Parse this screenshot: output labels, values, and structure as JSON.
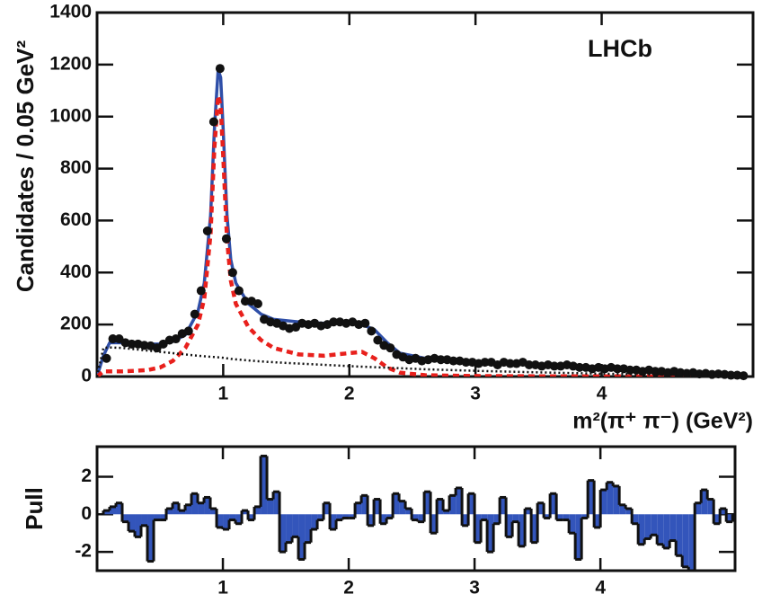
{
  "chart_data": [
    {
      "type": "scatter",
      "annotation": "LHCb",
      "xlabel": "m²(π⁺ π⁻) (GeV²)",
      "ylabel": "Candidates / 0.05 GeV²",
      "xlim": [
        0,
        5.2
      ],
      "ylim": [
        0,
        1400
      ],
      "xticks": [
        1,
        2,
        3,
        4
      ],
      "yticks": [
        0,
        200,
        400,
        600,
        800,
        1000,
        1200,
        1400
      ],
      "series": [
        {
          "style": "points",
          "color": "#111111",
          "x": [
            0.075,
            0.125,
            0.175,
            0.225,
            0.275,
            0.325,
            0.375,
            0.425,
            0.475,
            0.525,
            0.575,
            0.625,
            0.675,
            0.725,
            0.775,
            0.825,
            0.875,
            0.925,
            0.975,
            1.025,
            1.075,
            1.125,
            1.175,
            1.225,
            1.275,
            1.325,
            1.375,
            1.425,
            1.475,
            1.525,
            1.575,
            1.625,
            1.675,
            1.725,
            1.775,
            1.825,
            1.875,
            1.925,
            1.975,
            2.025,
            2.075,
            2.125,
            2.175,
            2.225,
            2.275,
            2.325,
            2.375,
            2.425,
            2.475,
            2.525,
            2.575,
            2.625,
            2.675,
            2.725,
            2.775,
            2.825,
            2.875,
            2.925,
            2.975,
            3.025,
            3.075,
            3.125,
            3.175,
            3.225,
            3.275,
            3.325,
            3.375,
            3.425,
            3.475,
            3.525,
            3.575,
            3.625,
            3.675,
            3.725,
            3.775,
            3.825,
            3.875,
            3.925,
            3.975,
            4.025,
            4.075,
            4.125,
            4.175,
            4.225,
            4.275,
            4.325,
            4.375,
            4.425,
            4.475,
            4.525,
            4.575,
            4.625,
            4.675,
            4.725,
            4.775,
            4.825,
            4.875,
            4.925,
            4.975,
            5.025,
            5.075,
            5.125
          ],
          "values": [
            70,
            145,
            145,
            130,
            125,
            125,
            120,
            118,
            110,
            125,
            140,
            145,
            165,
            175,
            240,
            330,
            560,
            980,
            1185,
            530,
            400,
            330,
            290,
            290,
            280,
            220,
            210,
            205,
            195,
            185,
            190,
            205,
            200,
            205,
            195,
            200,
            210,
            210,
            205,
            210,
            200,
            205,
            175,
            140,
            120,
            110,
            85,
            75,
            65,
            70,
            60,
            65,
            70,
            65,
            65,
            60,
            60,
            55,
            55,
            50,
            55,
            55,
            45,
            55,
            50,
            50,
            55,
            45,
            45,
            40,
            45,
            40,
            40,
            45,
            40,
            35,
            35,
            30,
            35,
            30,
            35,
            30,
            30,
            25,
            25,
            20,
            25,
            20,
            20,
            15,
            20,
            15,
            12,
            15,
            10,
            12,
            8,
            10,
            8,
            5,
            5,
            3
          ]
        },
        {
          "style": "solid",
          "color": "#2f4fa8",
          "x": [
            0.0,
            0.05,
            0.1,
            0.2,
            0.3,
            0.4,
            0.5,
            0.6,
            0.7,
            0.8,
            0.85,
            0.9,
            0.93,
            0.96,
            0.98,
            1.0,
            1.03,
            1.06,
            1.1,
            1.2,
            1.3,
            1.4,
            1.6,
            1.8,
            2.0,
            2.1,
            2.2,
            2.3,
            2.4,
            2.6,
            3.0,
            3.5,
            4.0,
            4.5,
            5.0,
            5.15
          ],
          "values": [
            0,
            80,
            130,
            130,
            128,
            125,
            125,
            135,
            160,
            250,
            360,
            620,
            950,
            1180,
            1150,
            950,
            620,
            450,
            360,
            280,
            240,
            220,
            210,
            205,
            205,
            200,
            180,
            130,
            90,
            70,
            55,
            45,
            35,
            22,
            10,
            5
          ]
        },
        {
          "style": "dashed",
          "color": "#e8201c",
          "x": [
            0.0,
            0.05,
            0.1,
            0.2,
            0.3,
            0.4,
            0.5,
            0.6,
            0.7,
            0.8,
            0.85,
            0.9,
            0.93,
            0.96,
            0.98,
            1.0,
            1.03,
            1.06,
            1.1,
            1.2,
            1.3,
            1.4,
            1.6,
            1.8,
            2.0,
            2.1,
            2.2,
            2.3,
            2.4,
            2.6,
            3.0,
            3.5,
            4.0,
            4.5,
            5.0,
            5.15
          ],
          "values": [
            0,
            20,
            20,
            20,
            22,
            25,
            35,
            60,
            110,
            200,
            300,
            550,
            880,
            1080,
            1040,
            850,
            530,
            370,
            280,
            190,
            140,
            110,
            85,
            80,
            90,
            95,
            70,
            35,
            15,
            5,
            2,
            1,
            1,
            0,
            0,
            0
          ]
        },
        {
          "style": "dotted",
          "color": "#111111",
          "x": [
            0.0,
            0.05,
            0.1,
            0.2,
            0.3,
            0.4,
            0.5,
            0.6,
            0.7,
            0.8,
            0.85,
            0.9,
            0.93,
            0.96,
            0.98,
            1.0,
            1.03,
            1.06,
            1.1,
            1.2,
            1.3,
            1.4,
            1.6,
            1.8,
            2.0,
            2.1,
            2.2,
            2.3,
            2.4,
            2.6,
            3.0,
            3.5,
            4.0,
            4.5,
            5.0,
            5.15
          ],
          "values": [
            0,
            110,
            112,
            110,
            105,
            100,
            95,
            90,
            85,
            80,
            78,
            76,
            75,
            74,
            73,
            72,
            70,
            68,
            66,
            62,
            58,
            55,
            50,
            45,
            40,
            38,
            36,
            34,
            32,
            28,
            22,
            16,
            11,
            7,
            3,
            2
          ]
        }
      ]
    },
    {
      "type": "histogram",
      "ylabel": "Pull",
      "xlim": [
        0,
        5.07
      ],
      "ylim": [
        -3,
        3.6
      ],
      "xticks": [
        1,
        2,
        3,
        4
      ],
      "yticks": [
        -2,
        0,
        2
      ],
      "color": "#3355bb",
      "bins": [
        0.05,
        0.1,
        0.15,
        0.2,
        0.25,
        0.3,
        0.35,
        0.4,
        0.45,
        0.5,
        0.55,
        0.6,
        0.65,
        0.7,
        0.75,
        0.8,
        0.85,
        0.9,
        0.95,
        1.0,
        1.05,
        1.1,
        1.15,
        1.2,
        1.25,
        1.3,
        1.35,
        1.4,
        1.45,
        1.5,
        1.55,
        1.6,
        1.65,
        1.7,
        1.75,
        1.8,
        1.85,
        1.9,
        1.95,
        2.0,
        2.05,
        2.1,
        2.15,
        2.2,
        2.25,
        2.3,
        2.35,
        2.4,
        2.45,
        2.5,
        2.55,
        2.6,
        2.65,
        2.7,
        2.75,
        2.8,
        2.85,
        2.9,
        2.95,
        3.0,
        3.05,
        3.1,
        3.15,
        3.2,
        3.25,
        3.3,
        3.35,
        3.4,
        3.45,
        3.5,
        3.55,
        3.6,
        3.65,
        3.7,
        3.75,
        3.8,
        3.85,
        3.9,
        3.95,
        4.0,
        4.05,
        4.1,
        4.15,
        4.2,
        4.25,
        4.3,
        4.35,
        4.4,
        4.45,
        4.5,
        4.55,
        4.6,
        4.65,
        4.7,
        4.75,
        4.8,
        4.85,
        4.9,
        4.95,
        5.0,
        5.05
      ],
      "values": [
        0.2,
        0.4,
        0.6,
        -0.4,
        -0.9,
        -1.2,
        -0.6,
        -2.5,
        -0.3,
        -0.3,
        0.3,
        0.6,
        0.2,
        0.5,
        1.1,
        0.6,
        0.9,
        0.3,
        -0.7,
        -0.8,
        -0.3,
        -0.5,
        0.2,
        -0.3,
        0.4,
        3.1,
        0.8,
        1.2,
        -2.0,
        -1.5,
        -1.2,
        -2.4,
        -1.5,
        -0.8,
        -0.3,
        0.6,
        -0.8,
        -0.3,
        -0.2,
        -0.2,
        0.6,
        1.0,
        -0.6,
        0.8,
        -0.5,
        -0.2,
        1.1,
        0.7,
        0.3,
        -0.3,
        -0.4,
        1.2,
        -1.0,
        0.8,
        0.2,
        1.0,
        1.4,
        -0.6,
        1.1,
        -1.5,
        -0.3,
        -2.0,
        -0.5,
        0.9,
        -1.2,
        -0.4,
        -1.7,
        0.3,
        -1.5,
        0.6,
        -0.2,
        1.1,
        -0.3,
        -0.3,
        -1.0,
        -2.4,
        -0.2,
        1.8,
        -0.7,
        1.3,
        1.7,
        1.5,
        0.5,
        0.3,
        -0.5,
        -1.6,
        -1.3,
        -1.1,
        -1.6,
        -1.8,
        -1.4,
        -2.2,
        -2.8,
        -3.0,
        0.6,
        1.3,
        0.8,
        -0.5,
        0.3,
        -0.4
      ]
    }
  ]
}
